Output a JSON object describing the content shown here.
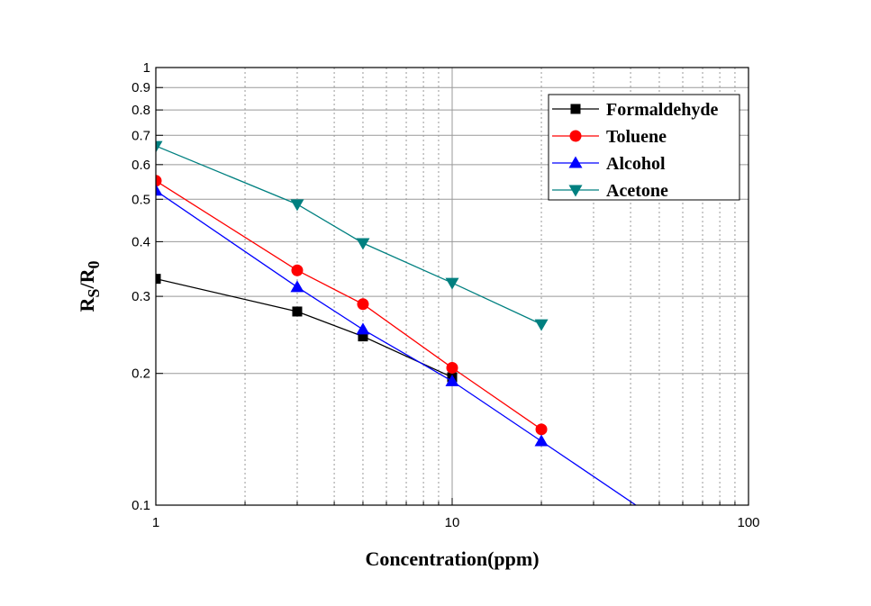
{
  "chart_data": {
    "type": "line",
    "title": "",
    "xlabel": "Concentration(ppm)",
    "ylabel_main": "R",
    "ylabel_sub1": "S",
    "ylabel_mid": "/R",
    "ylabel_sub2": "0",
    "xscale": "log",
    "yscale": "log",
    "xlim": [
      1,
      100
    ],
    "ylim": [
      0.1,
      1
    ],
    "xticks": [
      1,
      10,
      100
    ],
    "xtick_labels": [
      "1",
      "10",
      "100"
    ],
    "yticks": [
      0.1,
      0.2,
      0.3,
      0.4,
      0.5,
      0.6,
      0.7,
      0.8,
      0.9,
      1
    ],
    "ytick_labels": [
      "0.1",
      "0.2",
      "0.3",
      "0.4",
      "0.5",
      "0.6",
      "0.7",
      "0.8",
      "0.9",
      "1"
    ],
    "grid": true,
    "legend_position": "top-right",
    "series": [
      {
        "name": "Formaldehyde",
        "color": "#000000",
        "marker": "square",
        "x": [
          1,
          3,
          5,
          10
        ],
        "y": [
          0.329,
          0.277,
          0.243,
          0.196
        ]
      },
      {
        "name": "Toluene",
        "color": "#ff0000",
        "marker": "circle",
        "x": [
          1,
          3,
          5,
          10,
          20
        ],
        "y": [
          0.551,
          0.344,
          0.288,
          0.206,
          0.149
        ]
      },
      {
        "name": "Alcohol",
        "color": "#0000ff",
        "marker": "triangle-up",
        "x": [
          1,
          3,
          5,
          10,
          20,
          50
        ],
        "y": [
          0.523,
          0.315,
          0.252,
          0.192,
          0.14,
          0.092
        ]
      },
      {
        "name": "Acetone",
        "color": "#008080",
        "marker": "triangle-down",
        "x": [
          1,
          3,
          5,
          10,
          20
        ],
        "y": [
          0.662,
          0.487,
          0.397,
          0.322,
          0.259
        ]
      }
    ]
  }
}
